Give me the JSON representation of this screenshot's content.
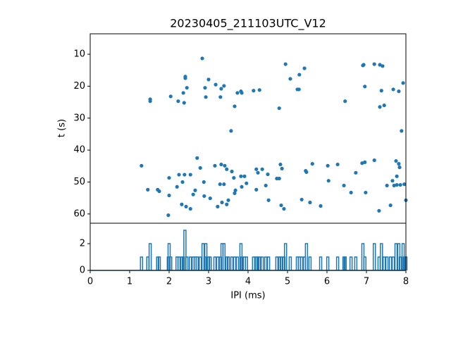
{
  "chart_data": [
    {
      "type": "scatter",
      "title": "20230405_211103UTC_V12",
      "y_label": "t (s)",
      "color": "#1f77b4",
      "xlim": [
        0,
        8
      ],
      "ylim": [
        62.9,
        3.6
      ],
      "yticks": [
        10,
        20,
        30,
        40,
        50,
        60
      ],
      "x": [
        2.84,
        4.95,
        6.91,
        6.93,
        7.2,
        7.34,
        7.41,
        5.43,
        5.3,
        2.41,
        2.41,
        3.0,
        5.07,
        7.93,
        3.18,
        3.39,
        3.32,
        2.45,
        2.91,
        6.96,
        7.68,
        5.25,
        5.29,
        4.29,
        4.14,
        3.82,
        3.84,
        3.73,
        7.38,
        7.82,
        2.36,
        2.04,
        2.93,
        3.3,
        2.23,
        1.52,
        1.52,
        2.38,
        6.46,
        3.66,
        7.45,
        7.34,
        4.79,
        3.57,
        7.89,
        2.71,
        7.2,
        7.75,
        5.63,
        6.96,
        6.89,
        1.3,
        3.32,
        3.16,
        3.41,
        4.82,
        6.02,
        6.27,
        7.82,
        2.79,
        3.46,
        4.21,
        4.36,
        4.86,
        5.46,
        7.84,
        5.48,
        3.59,
        4.25,
        4.5,
        6.73,
        2.25,
        2.39,
        2.54,
        2.0,
        3.82,
        3.91,
        3.64,
        4.73,
        4.79,
        7.77,
        2.34,
        2.88,
        6.04,
        7.66,
        3.29,
        3.39,
        3.96,
        4.45,
        6.43,
        7.77,
        7.86,
        7.96,
        7.52,
        7.7,
        2.2,
        3.84,
        1.46,
        2.66,
        1.71,
        1.75,
        3.68,
        4.21,
        3.66,
        6.61,
        6.98,
        2.0,
        2.61,
        2.89,
        3.04,
        3.5,
        4.52,
        5.36,
        8.0,
        5.57,
        3.34,
        2.32,
        3.46,
        4.84,
        5.84,
        7.61,
        2.43,
        3.23,
        2.54,
        4.91,
        7.32,
        1.98
      ],
      "values": [
        11.3,
        13.1,
        13.5,
        13.3,
        13.1,
        13.3,
        13.7,
        14.4,
        16.4,
        17.0,
        17.5,
        17.9,
        17.7,
        19.0,
        19.5,
        19.9,
        20.8,
        20.5,
        20.5,
        20.1,
        21.0,
        21.0,
        21.0,
        21.2,
        21.4,
        21.6,
        22.1,
        22.1,
        21.4,
        21.6,
        22.1,
        23.2,
        23.4,
        23.4,
        24.7,
        24.1,
        24.7,
        25.2,
        24.7,
        26.3,
        26.0,
        26.5,
        26.9,
        34.0,
        34.0,
        42.5,
        43.2,
        43.4,
        44.3,
        43.8,
        44.1,
        44.9,
        44.5,
        44.9,
        44.9,
        44.5,
        44.9,
        44.5,
        44.3,
        45.6,
        46.0,
        46.0,
        46.0,
        45.8,
        46.5,
        45.4,
        46.9,
        46.7,
        47.1,
        47.6,
        47.1,
        47.7,
        47.7,
        47.7,
        48.7,
        48.2,
        48.2,
        48.7,
        48.9,
        48.9,
        48.2,
        50.0,
        50.0,
        49.6,
        49.6,
        50.7,
        50.7,
        50.4,
        51.1,
        51.1,
        50.9,
        50.9,
        50.7,
        51.1,
        51.1,
        51.5,
        51.5,
        52.4,
        52.6,
        52.4,
        52.9,
        52.6,
        52.4,
        53.5,
        53.3,
        53.3,
        54.2,
        53.9,
        54.4,
        55.1,
        55.7,
        55.7,
        55.5,
        55.7,
        56.4,
        56.4,
        57.0,
        57.0,
        57.3,
        57.5,
        57.3,
        57.7,
        57.7,
        58.4,
        58.4,
        59.0,
        60.4
      ]
    },
    {
      "type": "line",
      "x_label": "IPI (ms)",
      "color": "#1f77b4",
      "xlim": [
        0,
        8
      ],
      "ylim": [
        0,
        3.53
      ],
      "xticks": [
        0,
        1,
        2,
        3,
        4,
        5,
        6,
        7,
        8
      ],
      "yticks": [
        0,
        2
      ],
      "x": [
        1.3,
        1.46,
        1.52,
        1.71,
        1.75,
        1.98,
        2.0,
        2.04,
        2.2,
        2.25,
        2.32,
        2.36,
        2.4,
        2.45,
        2.54,
        2.61,
        2.66,
        2.71,
        2.79,
        2.86,
        2.91,
        2.93,
        3.0,
        3.04,
        3.16,
        3.23,
        3.3,
        3.34,
        3.39,
        3.46,
        3.5,
        3.59,
        3.66,
        3.73,
        3.82,
        3.84,
        3.91,
        3.96,
        4.14,
        4.21,
        4.25,
        4.29,
        4.36,
        4.45,
        4.52,
        4.73,
        4.8,
        4.84,
        4.91,
        4.95,
        5.07,
        5.25,
        5.3,
        5.36,
        5.43,
        5.48,
        5.57,
        5.84,
        6.02,
        6.27,
        6.43,
        6.46,
        6.61,
        6.73,
        6.91,
        6.96,
        7.2,
        7.32,
        7.38,
        7.45,
        7.52,
        7.61,
        7.68,
        7.75,
        7.82,
        7.86,
        7.93,
        7.96,
        8.0
      ],
      "values": [
        1,
        1,
        2,
        1,
        1,
        1,
        2,
        1,
        1,
        1,
        1,
        1,
        3,
        1,
        1,
        1,
        1,
        1,
        1,
        2,
        1,
        2,
        1,
        1,
        1,
        1,
        1,
        2,
        2,
        1,
        1,
        1,
        1,
        1,
        2,
        1,
        1,
        1,
        1,
        1,
        1,
        1,
        1,
        1,
        1,
        1,
        1,
        1,
        1,
        2,
        1,
        1,
        1,
        1,
        1,
        2,
        1,
        1,
        1,
        1,
        1,
        1,
        1,
        1,
        2,
        1,
        2,
        1,
        2,
        1,
        1,
        1,
        1,
        2,
        2,
        1,
        2,
        1,
        1
      ]
    }
  ]
}
